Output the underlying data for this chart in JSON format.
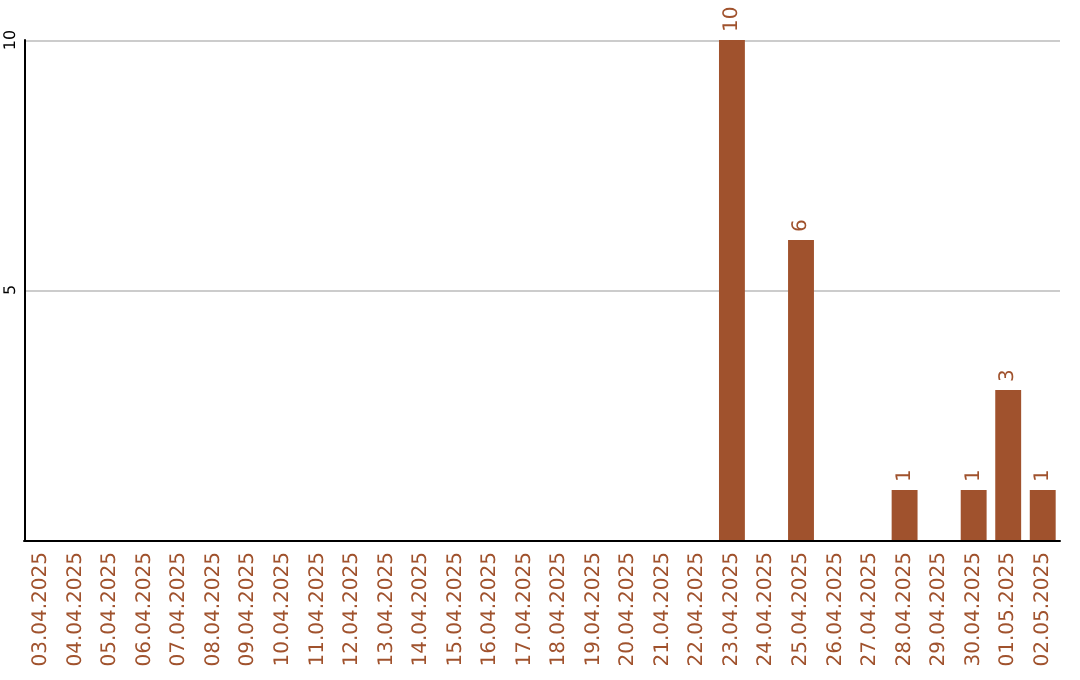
{
  "chart_data": {
    "type": "bar",
    "categories": [
      "03.04.2025",
      "04.04.2025",
      "05.04.2025",
      "06.04.2025",
      "07.04.2025",
      "08.04.2025",
      "09.04.2025",
      "10.04.2025",
      "11.04.2025",
      "12.04.2025",
      "13.04.2025",
      "14.04.2025",
      "15.04.2025",
      "16.04.2025",
      "17.04.2025",
      "18.04.2025",
      "19.04.2025",
      "20.04.2025",
      "21.04.2025",
      "22.04.2025",
      "23.04.2025",
      "24.04.2025",
      "25.04.2025",
      "26.04.2025",
      "27.04.2025",
      "28.04.2025",
      "29.04.2025",
      "30.04.2025",
      "01.05.2025",
      "02.05.2025"
    ],
    "values": [
      0,
      0,
      0,
      0,
      0,
      0,
      0,
      0,
      0,
      0,
      0,
      0,
      0,
      0,
      0,
      0,
      0,
      0,
      0,
      0,
      10,
      0,
      6,
      0,
      0,
      1,
      0,
      1,
      3,
      1
    ],
    "value_labels": [
      null,
      null,
      null,
      null,
      null,
      null,
      null,
      null,
      null,
      null,
      null,
      null,
      null,
      null,
      null,
      null,
      null,
      null,
      null,
      null,
      "10",
      null,
      "6",
      null,
      null,
      "1",
      null,
      "1",
      "3",
      "1"
    ],
    "color": "#a0522d",
    "ylim": [
      0,
      10
    ],
    "yticks": [
      5,
      10
    ],
    "grid": "y"
  }
}
